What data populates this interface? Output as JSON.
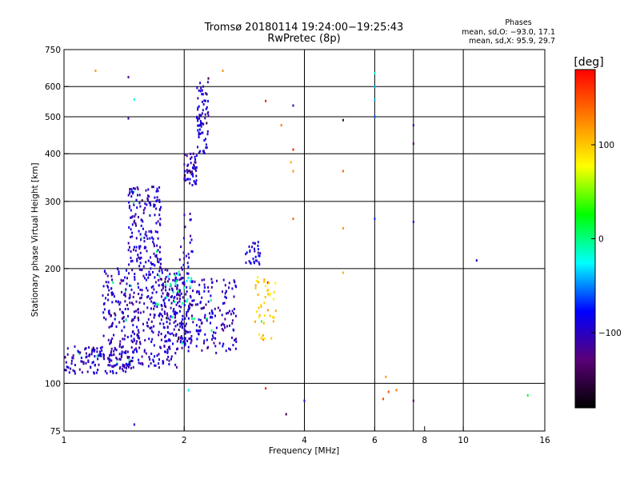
{
  "chart_data": {
    "type": "scatter",
    "title": "Tromsø 20180114 19:24:00−19:25:43",
    "subtitle": "RwPretec (8p)",
    "stats": {
      "heading": "Phases",
      "line_o": "mean, sd,O: −93.0, 17.1",
      "line_x": "mean, sd,X:  95.9, 29.7"
    },
    "xlabel": "Frequency [MHz]",
    "ylabel": "Stationary phase Virtual Height [km]",
    "x_scale": "log",
    "y_scale": "log",
    "xlim": [
      1,
      16
    ],
    "ylim": [
      75,
      750
    ],
    "xticks": [
      1,
      2,
      4,
      6,
      8,
      10,
      16
    ],
    "xtick_labels": [
      "1",
      "2",
      "4",
      "6",
      "8",
      "10",
      "16"
    ],
    "xgrid": [
      2,
      4,
      6,
      7.5,
      10
    ],
    "yticks": [
      75,
      100,
      200,
      300,
      400,
      500,
      600,
      750
    ],
    "ytick_labels": [
      "75",
      "100",
      "200",
      "300",
      "400",
      "500",
      "600",
      "750"
    ],
    "ygrid": [
      100,
      200,
      300,
      400,
      500,
      600
    ],
    "grid": true,
    "colorbar": {
      "label": "[deg]",
      "range": [
        -180,
        180
      ],
      "ticks": [
        100,
        0,
        -100
      ],
      "tick_labels": [
        "100",
        "0",
        "−100"
      ],
      "colors": [
        "#000000",
        "#5a0078",
        "#0000ff",
        "#00ffff",
        "#00ff00",
        "#ffff00",
        "#ff8000",
        "#ff0000"
      ]
    },
    "clusters": [
      {
        "x": [
          1.0,
          1.5
        ],
        "y": [
          106,
          125
        ],
        "phase": -100,
        "n": 130
      },
      {
        "x": [
          1.25,
          1.95
        ],
        "y": [
          110,
          200
        ],
        "phase": -100,
        "n": 380
      },
      {
        "x": [
          1.45,
          1.75
        ],
        "y": [
          200,
          330
        ],
        "phase": -100,
        "n": 170
      },
      {
        "x": [
          1.75,
          2.7
        ],
        "y": [
          120,
          190
        ],
        "phase": -100,
        "n": 260
      },
      {
        "x": [
          1.95,
          2.1
        ],
        "y": [
          125,
          280
        ],
        "phase": -100,
        "n": 60
      },
      {
        "x": [
          2.0,
          2.15
        ],
        "y": [
          330,
          400
        ],
        "phase": -100,
        "n": 50
      },
      {
        "x": [
          2.15,
          2.3
        ],
        "y": [
          400,
          620
        ],
        "phase": -95,
        "n": 70
      },
      {
        "x": [
          2.85,
          3.1
        ],
        "y": [
          205,
          235
        ],
        "phase": -90,
        "n": 30
      },
      {
        "x": [
          3.0,
          3.4
        ],
        "y": [
          130,
          190
        ],
        "phase": 100,
        "n": 45
      },
      {
        "x": [
          1.7,
          2.1
        ],
        "y": [
          160,
          195
        ],
        "phase": -10,
        "n": 25
      }
    ],
    "points": [
      {
        "x": 1.2,
        "y": 660,
        "phase": 120
      },
      {
        "x": 1.45,
        "y": 635,
        "phase": -120
      },
      {
        "x": 1.45,
        "y": 495,
        "phase": -110
      },
      {
        "x": 1.5,
        "y": 555,
        "phase": -20
      },
      {
        "x": 2.3,
        "y": 630,
        "phase": -150
      },
      {
        "x": 2.5,
        "y": 660,
        "phase": 120
      },
      {
        "x": 3.2,
        "y": 550,
        "phase": 170
      },
      {
        "x": 3.5,
        "y": 475,
        "phase": 130
      },
      {
        "x": 3.75,
        "y": 535,
        "phase": -110
      },
      {
        "x": 3.75,
        "y": 410,
        "phase": 170
      },
      {
        "x": 3.7,
        "y": 380,
        "phase": 110
      },
      {
        "x": 3.75,
        "y": 360,
        "phase": 120
      },
      {
        "x": 3.75,
        "y": 270,
        "phase": 140
      },
      {
        "x": 5.0,
        "y": 490,
        "phase": -150
      },
      {
        "x": 5.0,
        "y": 360,
        "phase": 140
      },
      {
        "x": 5.0,
        "y": 255,
        "phase": 120
      },
      {
        "x": 5.0,
        "y": 195,
        "phase": 110
      },
      {
        "x": 6.0,
        "y": 650,
        "phase": -20
      },
      {
        "x": 6.0,
        "y": 600,
        "phase": -40
      },
      {
        "x": 6.0,
        "y": 555,
        "phase": -40
      },
      {
        "x": 6.0,
        "y": 500,
        "phase": -60
      },
      {
        "x": 6.0,
        "y": 270,
        "phase": -70
      },
      {
        "x": 7.5,
        "y": 475,
        "phase": -100
      },
      {
        "x": 7.5,
        "y": 425,
        "phase": -140
      },
      {
        "x": 7.5,
        "y": 265,
        "phase": -100
      },
      {
        "x": 10.8,
        "y": 210,
        "phase": -100
      },
      {
        "x": 6.4,
        "y": 104,
        "phase": 120
      },
      {
        "x": 6.5,
        "y": 95,
        "phase": 150
      },
      {
        "x": 6.8,
        "y": 96,
        "phase": 130
      },
      {
        "x": 7.5,
        "y": 90,
        "phase": -140
      },
      {
        "x": 4.0,
        "y": 90,
        "phase": -100
      },
      {
        "x": 3.6,
        "y": 83,
        "phase": -150
      },
      {
        "x": 3.2,
        "y": 97,
        "phase": 170
      },
      {
        "x": 2.05,
        "y": 96,
        "phase": -30
      },
      {
        "x": 1.5,
        "y": 78,
        "phase": -100
      },
      {
        "x": 14.5,
        "y": 93,
        "phase": 20
      },
      {
        "x": 6.3,
        "y": 91,
        "phase": 150
      }
    ]
  }
}
